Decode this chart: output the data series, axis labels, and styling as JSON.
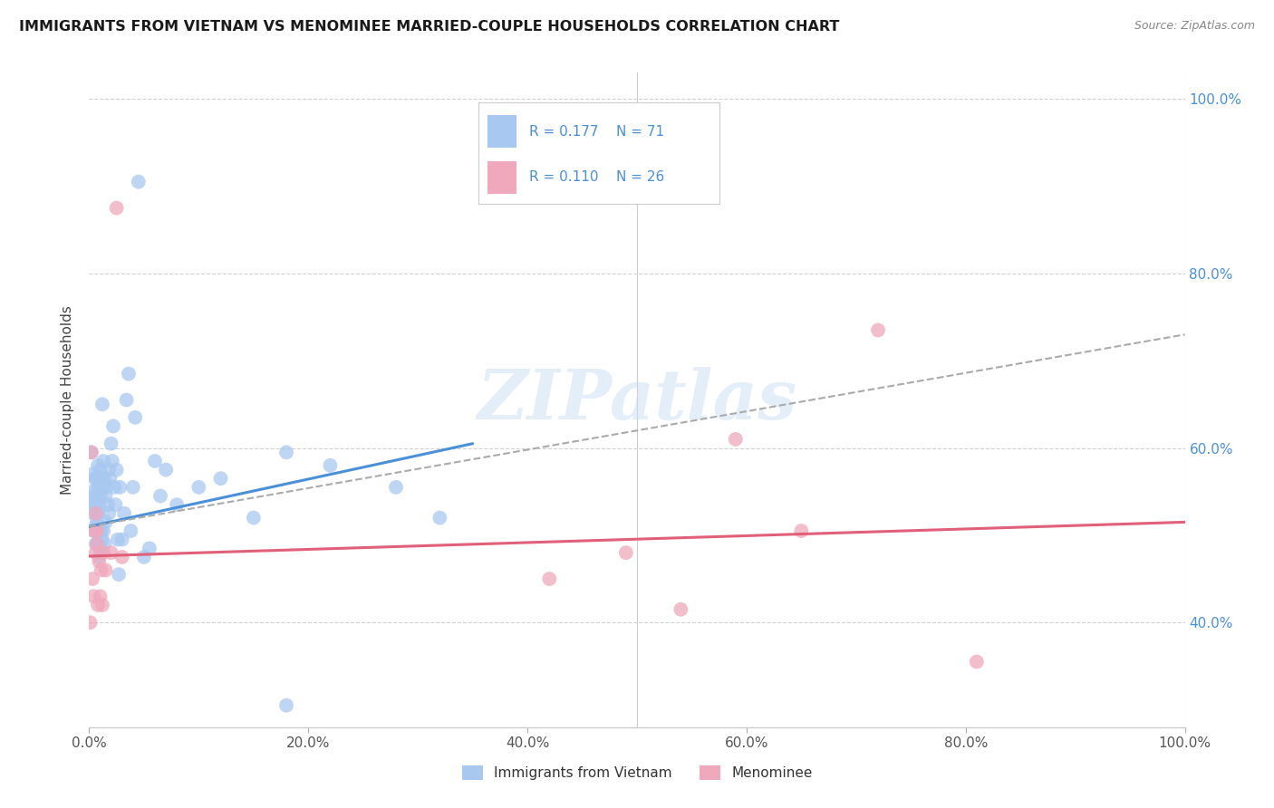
{
  "title": "IMMIGRANTS FROM VIETNAM VS MENOMINEE MARRIED-COUPLE HOUSEHOLDS CORRELATION CHART",
  "source": "Source: ZipAtlas.com",
  "ylabel": "Married-couple Households",
  "legend_label1": "Immigrants from Vietnam",
  "legend_label2": "Menominee",
  "r1": "0.177",
  "n1": "71",
  "r2": "0.110",
  "n2": "26",
  "color_blue": "#a8c8f0",
  "color_pink": "#f0a8bc",
  "color_blue_text": "#4a90d9",
  "color_pink_text": "#e0607a",
  "watermark": "ZIPatlas",
  "blue_scatter_x": [
    0.001,
    0.002,
    0.003,
    0.003,
    0.004,
    0.004,
    0.005,
    0.005,
    0.006,
    0.006,
    0.006,
    0.007,
    0.007,
    0.007,
    0.008,
    0.008,
    0.008,
    0.008,
    0.009,
    0.009,
    0.009,
    0.01,
    0.01,
    0.01,
    0.011,
    0.011,
    0.012,
    0.012,
    0.012,
    0.013,
    0.013,
    0.014,
    0.014,
    0.015,
    0.015,
    0.016,
    0.017,
    0.018,
    0.018,
    0.019,
    0.02,
    0.021,
    0.022,
    0.023,
    0.024,
    0.025,
    0.026,
    0.027,
    0.028,
    0.03,
    0.032,
    0.034,
    0.036,
    0.038,
    0.04,
    0.042,
    0.045,
    0.05,
    0.055,
    0.06,
    0.065,
    0.07,
    0.08,
    0.1,
    0.12,
    0.15,
    0.18,
    0.22,
    0.28,
    0.32,
    0.18
  ],
  "blue_scatter_y": [
    0.535,
    0.595,
    0.55,
    0.57,
    0.505,
    0.525,
    0.545,
    0.565,
    0.49,
    0.51,
    0.535,
    0.515,
    0.545,
    0.565,
    0.49,
    0.525,
    0.555,
    0.58,
    0.475,
    0.505,
    0.535,
    0.575,
    0.485,
    0.545,
    0.505,
    0.565,
    0.495,
    0.555,
    0.65,
    0.585,
    0.505,
    0.565,
    0.49,
    0.545,
    0.515,
    0.555,
    0.535,
    0.525,
    0.575,
    0.565,
    0.605,
    0.585,
    0.625,
    0.555,
    0.535,
    0.575,
    0.495,
    0.455,
    0.555,
    0.495,
    0.525,
    0.655,
    0.685,
    0.505,
    0.555,
    0.635,
    0.905,
    0.475,
    0.485,
    0.585,
    0.545,
    0.575,
    0.535,
    0.555,
    0.565,
    0.52,
    0.595,
    0.58,
    0.555,
    0.52,
    0.305
  ],
  "pink_scatter_x": [
    0.001,
    0.002,
    0.003,
    0.004,
    0.005,
    0.006,
    0.006,
    0.007,
    0.007,
    0.008,
    0.009,
    0.01,
    0.011,
    0.012,
    0.013,
    0.015,
    0.02,
    0.025,
    0.03,
    0.42,
    0.49,
    0.54,
    0.59,
    0.65,
    0.72,
    0.81
  ],
  "pink_scatter_y": [
    0.4,
    0.595,
    0.45,
    0.43,
    0.505,
    0.48,
    0.525,
    0.49,
    0.505,
    0.42,
    0.47,
    0.43,
    0.46,
    0.42,
    0.48,
    0.46,
    0.48,
    0.875,
    0.475,
    0.45,
    0.48,
    0.415,
    0.61,
    0.505,
    0.735,
    0.355
  ],
  "blue_trend_start_x": 0.0,
  "blue_trend_end_x": 0.35,
  "blue_trend_start_y": 0.51,
  "blue_trend_end_y": 0.605,
  "pink_trend_start_x": 0.0,
  "pink_trend_end_x": 1.0,
  "pink_trend_start_y": 0.476,
  "pink_trend_end_y": 0.515,
  "dashed_trend_start_x": 0.0,
  "dashed_trend_end_x": 1.0,
  "dashed_trend_start_y": 0.51,
  "dashed_trend_end_y": 0.73,
  "xlim": [
    0.0,
    1.0
  ],
  "ylim": [
    0.28,
    1.03
  ],
  "xtick_positions": [
    0.0,
    0.2,
    0.4,
    0.6,
    0.8,
    1.0
  ],
  "xtick_labels": [
    "0.0%",
    "20.0%",
    "40.0%",
    "60.0%",
    "80.0%",
    "100.0%"
  ],
  "ytick_positions": [
    0.4,
    0.6,
    0.8,
    1.0
  ],
  "ytick_labels": [
    "40.0%",
    "60.0%",
    "80.0%",
    "100.0%"
  ]
}
